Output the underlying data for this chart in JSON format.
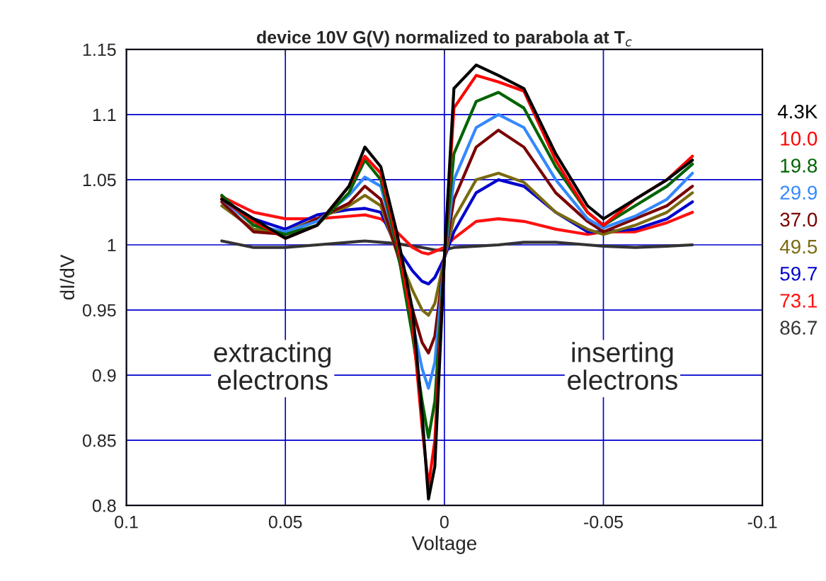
{
  "chart_data": {
    "type": "line",
    "title": "device 10V G(V) normalized to parabola at T$_{c}$",
    "xlabel": "Voltage",
    "ylabel": "dI/dV",
    "x": [
      0.07,
      0.06,
      0.05,
      0.04,
      0.03,
      0.025,
      0.02,
      0.015,
      0.01,
      0.007,
      0.005,
      0.003,
      0.0,
      -0.003,
      -0.01,
      -0.017,
      -0.025,
      -0.035,
      -0.045,
      -0.05,
      -0.06,
      -0.07,
      -0.078
    ],
    "series": [
      {
        "name": "4.3K",
        "color": "#000000",
        "values": [
          1.035,
          1.02,
          1.005,
          1.015,
          1.045,
          1.075,
          1.06,
          1.01,
          0.95,
          0.87,
          0.805,
          0.83,
          0.99,
          1.12,
          1.138,
          1.13,
          1.12,
          1.07,
          1.03,
          1.02,
          1.035,
          1.05,
          1.065
        ]
      },
      {
        "name": "10.0",
        "color": "#ff0000",
        "values": [
          1.035,
          1.018,
          1.005,
          1.015,
          1.045,
          1.068,
          1.055,
          1.005,
          0.94,
          0.86,
          0.815,
          0.85,
          0.99,
          1.105,
          1.13,
          1.125,
          1.118,
          1.065,
          1.025,
          1.015,
          1.035,
          1.05,
          1.068
        ]
      },
      {
        "name": "19.8",
        "color": "#006400",
        "values": [
          1.038,
          1.015,
          1.008,
          1.015,
          1.04,
          1.065,
          1.05,
          1.0,
          0.93,
          0.88,
          0.852,
          0.88,
          0.99,
          1.07,
          1.11,
          1.117,
          1.105,
          1.06,
          1.025,
          1.015,
          1.03,
          1.045,
          1.062
        ]
      },
      {
        "name": "29.9",
        "color": "#3388ff",
        "values": [
          1.035,
          1.015,
          1.01,
          1.018,
          1.038,
          1.052,
          1.045,
          1.0,
          0.94,
          0.905,
          0.89,
          0.91,
          0.99,
          1.05,
          1.09,
          1.1,
          1.09,
          1.05,
          1.02,
          1.013,
          1.022,
          1.035,
          1.055
        ]
      },
      {
        "name": "37.0",
        "color": "#7a0000",
        "values": [
          1.033,
          1.01,
          1.008,
          1.02,
          1.032,
          1.045,
          1.035,
          0.995,
          0.95,
          0.925,
          0.917,
          0.93,
          0.99,
          1.035,
          1.075,
          1.088,
          1.075,
          1.04,
          1.018,
          1.01,
          1.02,
          1.03,
          1.045
        ]
      },
      {
        "name": "49.5",
        "color": "#7a6a10",
        "values": [
          1.03,
          1.012,
          1.01,
          1.02,
          1.03,
          1.038,
          1.03,
          0.995,
          0.965,
          0.95,
          0.946,
          0.955,
          0.99,
          1.02,
          1.05,
          1.055,
          1.048,
          1.025,
          1.012,
          1.008,
          1.015,
          1.025,
          1.04
        ]
      },
      {
        "name": "59.7",
        "color": "#0000cc",
        "values": [
          1.035,
          1.02,
          1.012,
          1.023,
          1.027,
          1.028,
          1.025,
          0.998,
          0.98,
          0.972,
          0.97,
          0.975,
          0.99,
          1.01,
          1.04,
          1.05,
          1.045,
          1.025,
          1.01,
          1.01,
          1.012,
          1.02,
          1.033
        ]
      },
      {
        "name": "73.1",
        "color": "#ff1010",
        "values": [
          1.037,
          1.025,
          1.02,
          1.02,
          1.022,
          1.023,
          1.02,
          1.01,
          0.998,
          0.994,
          0.993,
          0.995,
          0.998,
          1.005,
          1.018,
          1.02,
          1.018,
          1.012,
          1.008,
          1.01,
          1.01,
          1.017,
          1.025
        ]
      },
      {
        "name": "86.7",
        "color": "#333333",
        "values": [
          1.003,
          0.998,
          0.998,
          1.0,
          1.002,
          1.003,
          1.002,
          1.001,
          0.999,
          0.998,
          0.997,
          0.996,
          0.996,
          0.998,
          0.999,
          1.0,
          1.002,
          1.002,
          1.0,
          0.999,
          0.998,
          0.999,
          1.0
        ]
      }
    ],
    "annotations": [
      "extracting\nelectrons",
      "inserting\nelectrons"
    ],
    "xlim": [
      0.1,
      -0.1
    ],
    "xticks": [
      0.1,
      0.05,
      0,
      -0.05,
      -0.1
    ],
    "ylim": [
      0.8,
      1.15
    ],
    "yticks": [
      0.8,
      0.85,
      0.9,
      0.95,
      1,
      1.05,
      1.1,
      1.15
    ],
    "grid": true,
    "legend": "right",
    "marker": "none",
    "line_style": "solid"
  }
}
